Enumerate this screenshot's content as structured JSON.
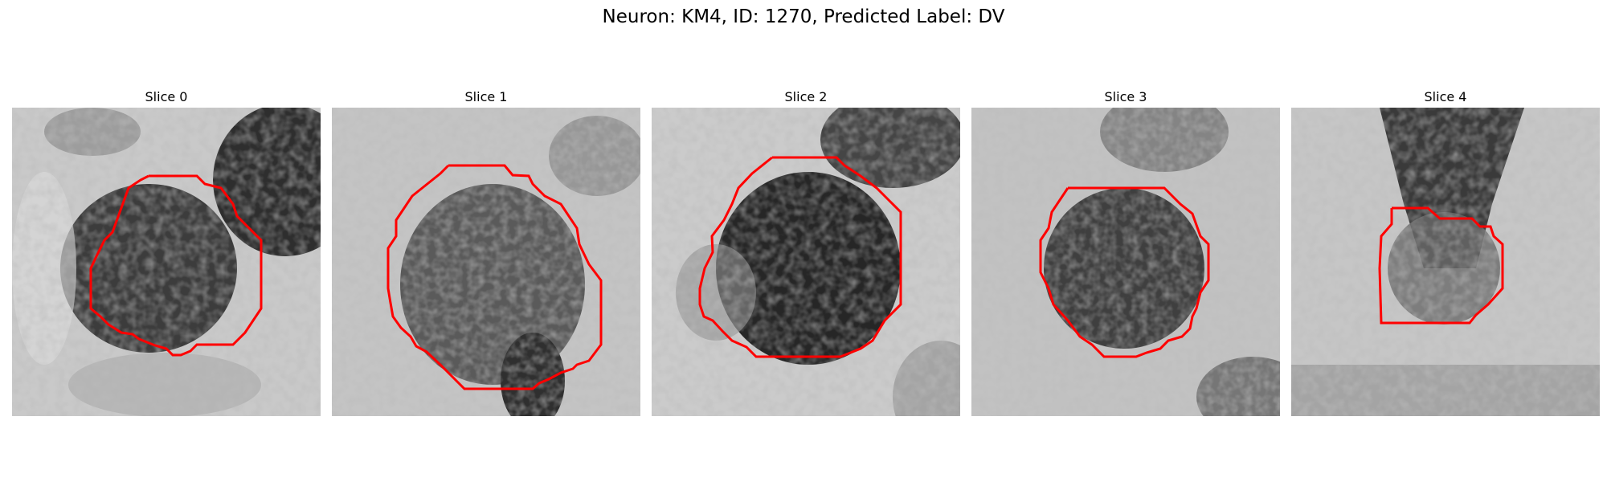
{
  "figure": {
    "title": "Neuron: KM4, ID: 1270, Predicted Label: DV"
  },
  "panels": [
    {
      "label": "Slice 0",
      "contour_color": "#ff0000"
    },
    {
      "label": "Slice 1",
      "contour_color": "#ff0000"
    },
    {
      "label": "Slice 2",
      "contour_color": "#ff0000"
    },
    {
      "label": "Slice 3",
      "contour_color": "#ff0000"
    },
    {
      "label": "Slice 4",
      "contour_color": "#ff0000"
    }
  ]
}
